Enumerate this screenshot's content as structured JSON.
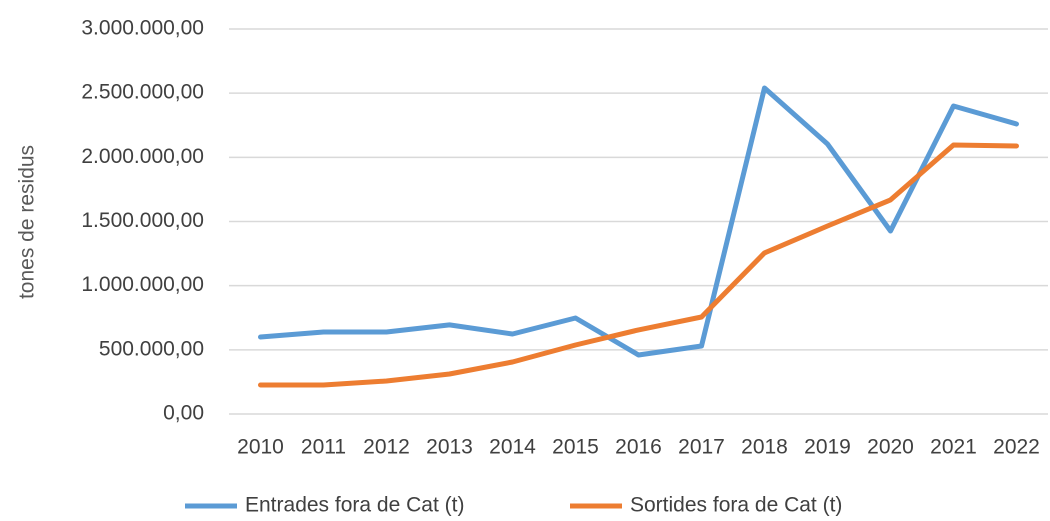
{
  "chart_data": {
    "type": "line",
    "y_label": "tones de residus",
    "categories": [
      "2010",
      "2011",
      "2012",
      "2013",
      "2014",
      "2015",
      "2016",
      "2017",
      "2018",
      "2019",
      "2020",
      "2021",
      "2022"
    ],
    "series": [
      {
        "name": "Entrades fora de Cat (t)",
        "color": "#5b9bd5",
        "values": [
          600000,
          639000,
          639000,
          694000,
          623000,
          748000,
          460000,
          530000,
          2540000,
          2104000,
          1426000,
          2400000,
          2260000
        ]
      },
      {
        "name": "Sortides fora de Cat (t)",
        "color": "#ed7d31",
        "values": [
          226000,
          226000,
          257000,
          312000,
          405000,
          538000,
          655000,
          756000,
          1255000,
          1465000,
          1668000,
          2096000,
          2088000
        ]
      }
    ],
    "ylim": [
      0,
      3000000
    ],
    "yticks": [
      {
        "value": 0,
        "label": "0,00"
      },
      {
        "value": 500000,
        "label": "500.000,00"
      },
      {
        "value": 1000000,
        "label": "1.000.000,00"
      },
      {
        "value": 1500000,
        "label": "1.500.000,00"
      },
      {
        "value": 2000000,
        "label": "2.000.000,00"
      },
      {
        "value": 2500000,
        "label": "2.500.000,00"
      },
      {
        "value": 3000000,
        "label": "3.000.000,00"
      }
    ],
    "grid": true,
    "legend": "bottom"
  }
}
